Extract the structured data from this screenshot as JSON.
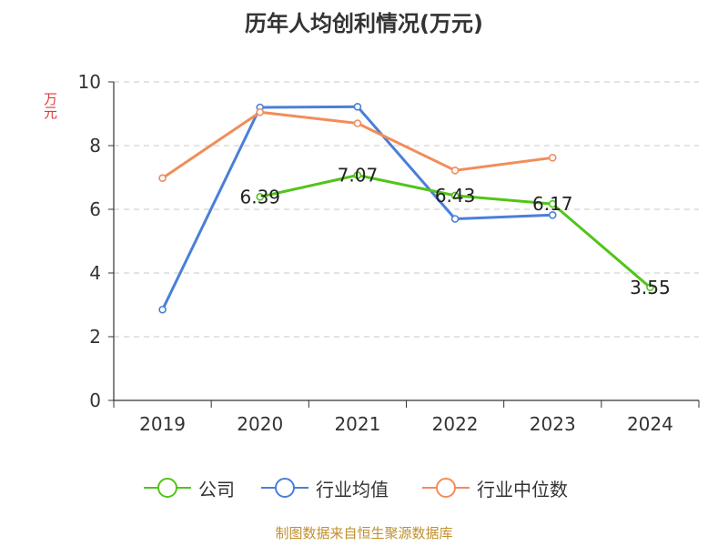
{
  "chart_data": {
    "type": "line",
    "title": "历年人均创利情况(万元)",
    "ylabel": "万元",
    "xlabel": "",
    "ylim": [
      0,
      10
    ],
    "yticks": [
      0,
      2,
      4,
      6,
      8,
      10
    ],
    "grid": "horizontal dashed",
    "legend_position": "bottom",
    "categories": [
      "2019",
      "2020",
      "2021",
      "2022",
      "2023",
      "2024"
    ],
    "series": [
      {
        "name": "公司",
        "color": "#52c41a",
        "values": [
          null,
          6.39,
          7.07,
          6.43,
          6.17,
          3.55
        ],
        "labels": [
          null,
          "6.39",
          "7.07",
          "6.43",
          "6.17",
          "3.55"
        ]
      },
      {
        "name": "行业均值",
        "color": "#4a7fd8",
        "values": [
          2.85,
          9.2,
          9.22,
          5.7,
          5.82,
          null
        ]
      },
      {
        "name": "行业中位数",
        "color": "#f28c5a",
        "values": [
          6.98,
          9.05,
          8.7,
          7.22,
          7.62,
          null
        ]
      }
    ]
  },
  "source": "制图数据来自恒生聚源数据库"
}
